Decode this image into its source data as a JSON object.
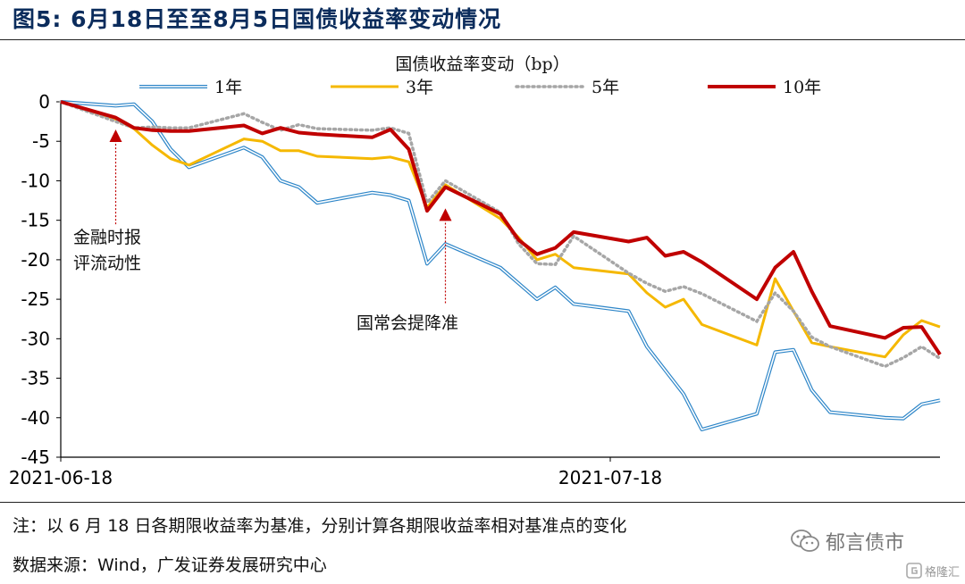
{
  "figure": {
    "title": "图5:   6月18日至至8月5日国债收益率变动情况",
    "note": "注：以 6 月 18 日各期限收益率为基准，分别计算各期限收益率相对基准点的变化",
    "source": "数据来源：Wind，广发证券发展研究中心",
    "watermark": "郁言债市",
    "watermark_icon": "wechat-icon",
    "logo": "格隆汇",
    "logo_icon": "gelonghui-logo-icon"
  },
  "chart_data": {
    "type": "line",
    "title": "",
    "xlabel": "",
    "ylabel": "",
    "legend_title": "国债收益率变动（bp）",
    "legend_position": "top",
    "ylim": [
      -45,
      0
    ],
    "yticks": [
      0,
      -5,
      -10,
      -15,
      -20,
      -25,
      -30,
      -35,
      -40,
      -45
    ],
    "xlim": [
      "2021-06-18",
      "2021-08-05"
    ],
    "xticks": [
      "2021-06-18",
      "2021-07-18"
    ],
    "grid": false,
    "x": [
      "2021-06-18",
      "2021-06-21",
      "2021-06-22",
      "2021-06-23",
      "2021-06-24",
      "2021-06-25",
      "2021-06-28",
      "2021-06-29",
      "2021-06-30",
      "2021-07-01",
      "2021-07-02",
      "2021-07-05",
      "2021-07-06",
      "2021-07-07",
      "2021-07-08",
      "2021-07-09",
      "2021-07-12",
      "2021-07-13",
      "2021-07-14",
      "2021-07-15",
      "2021-07-16",
      "2021-07-19",
      "2021-07-20",
      "2021-07-21",
      "2021-07-22",
      "2021-07-23",
      "2021-07-26",
      "2021-07-27",
      "2021-07-28",
      "2021-07-29",
      "2021-07-30",
      "2021-08-02",
      "2021-08-03",
      "2021-08-04",
      "2021-08-05"
    ],
    "series": [
      {
        "name": "1年",
        "color": "#2e86c8",
        "style": "double",
        "values": [
          0,
          -0.5,
          -0.3,
          -2.5,
          -6.0,
          -8.3,
          -5.8,
          -7.0,
          -10.0,
          -10.8,
          -12.8,
          -11.5,
          -11.8,
          -12.5,
          -20.5,
          -18.0,
          -21.0,
          -23.0,
          -25.0,
          -23.5,
          -25.6,
          -26.5,
          -31.0,
          -34.0,
          -37.0,
          -41.5,
          -39.5,
          -31.7,
          -31.4,
          -36.5,
          -39.3,
          -40.0,
          -40.1,
          -38.3,
          -37.8
        ]
      },
      {
        "name": "3年",
        "color": "#f5b800",
        "style": "solid",
        "values": [
          0,
          -2.2,
          -3.4,
          -5.5,
          -7.2,
          -8.0,
          -4.7,
          -5.0,
          -6.2,
          -6.2,
          -6.9,
          -7.2,
          -7.0,
          -7.6,
          -13.4,
          -10.5,
          -14.8,
          -17.2,
          -20.0,
          -19.3,
          -21.0,
          -21.8,
          -24.2,
          -26.0,
          -25.0,
          -28.2,
          -30.8,
          -22.4,
          -26.5,
          -30.5,
          -31.0,
          -32.3,
          -29.5,
          -27.7,
          -28.5
        ]
      },
      {
        "name": "5年",
        "color": "#a6a6a6",
        "style": "dotted",
        "values": [
          0,
          -2.5,
          -3.3,
          -3.2,
          -3.3,
          -3.3,
          -1.5,
          -2.6,
          -3.6,
          -2.9,
          -3.4,
          -3.6,
          -3.3,
          -4.0,
          -12.8,
          -10.0,
          -14.0,
          -18.0,
          -20.5,
          -20.6,
          -17.0,
          -21.7,
          -23.0,
          -24.0,
          -23.4,
          -24.3,
          -27.8,
          -24.2,
          -26.5,
          -29.8,
          -31.0,
          -33.5,
          -32.4,
          -31.0,
          -32.5
        ]
      },
      {
        "name": "10年",
        "color": "#c00000",
        "style": "solid",
        "values": [
          0,
          -2.0,
          -3.3,
          -3.6,
          -3.7,
          -3.7,
          -3.0,
          -4.0,
          -3.3,
          -3.9,
          -4.1,
          -4.5,
          -3.5,
          -6.0,
          -13.8,
          -10.8,
          -14.2,
          -17.5,
          -19.3,
          -18.5,
          -16.5,
          -17.7,
          -17.2,
          -19.5,
          -19.0,
          -20.3,
          -25.0,
          -21.0,
          -19.0,
          -24.0,
          -28.4,
          -29.9,
          -28.6,
          -28.5,
          -32.0
        ]
      }
    ],
    "annotations": [
      {
        "text": "金融时报\n评流动性",
        "x": "2021-06-21",
        "arrow_tip_y": -3.5,
        "arrow_base_y": -15.5
      },
      {
        "text": "国常会提降准",
        "x": "2021-07-09",
        "arrow_tip_y": -13.5,
        "arrow_base_y": -25.5
      }
    ]
  }
}
